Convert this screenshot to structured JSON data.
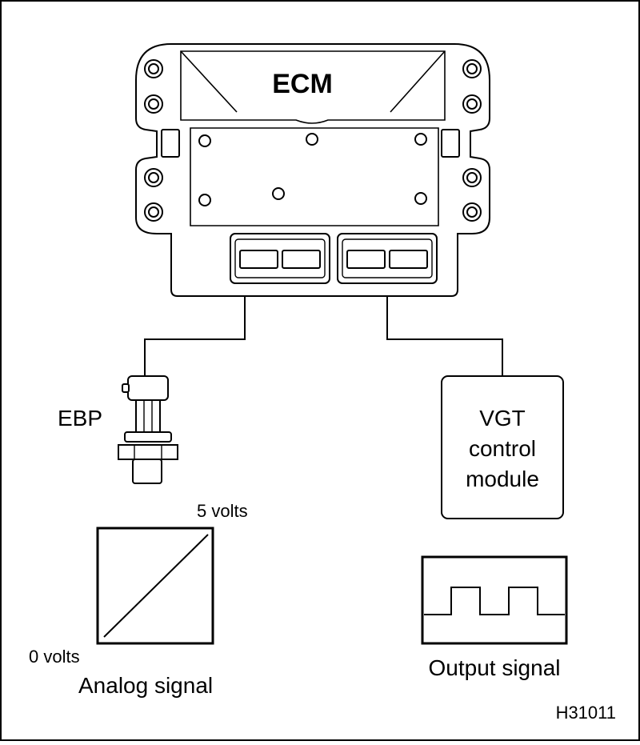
{
  "ecm": {
    "label": "ECM"
  },
  "sensor": {
    "label": "EBP"
  },
  "module": {
    "line1": "VGT",
    "line2": "control",
    "line3": "module"
  },
  "analog": {
    "max_label": "5 volts",
    "min_label": "0 volts",
    "caption": "Analog signal"
  },
  "output": {
    "caption": "Output signal"
  },
  "figure": {
    "id": "H31011"
  }
}
